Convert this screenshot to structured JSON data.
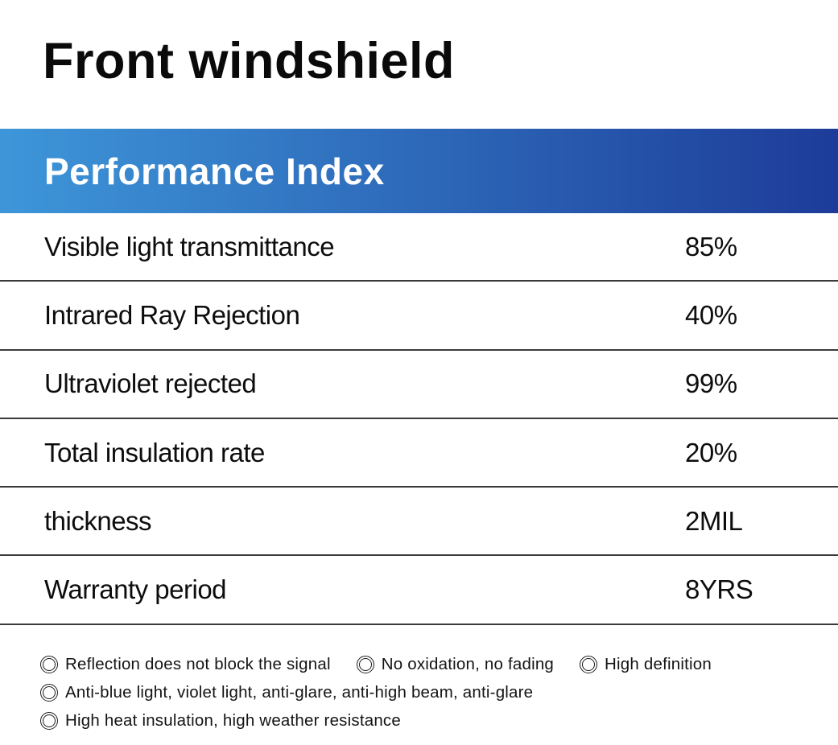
{
  "page": {
    "title": "Front windshield"
  },
  "banner": {
    "label": "Performance Index",
    "gradient_left": "#3e96d9",
    "gradient_right": "#1d3c99",
    "text_color": "#ffffff"
  },
  "spec_table": {
    "rows": [
      {
        "label": "Visible light transmittance",
        "value": "85%"
      },
      {
        "label": "Intrared Ray Rejection",
        "value": "40%"
      },
      {
        "label": "Ultraviolet rejected",
        "value": "99%"
      },
      {
        "label": "Total insulation rate",
        "value": "20%"
      },
      {
        "label": "thickness",
        "value": "2MIL"
      },
      {
        "label": "Warranty period",
        "value": "8YRS"
      }
    ]
  },
  "features": {
    "icon": "double-circle-icon",
    "lines": [
      [
        "Reflection does not block the signal",
        "No oxidation, no fading",
        "High definition"
      ],
      [
        "Anti-blue light, violet light, anti-glare, anti-high beam, anti-glare"
      ],
      [
        "High heat insulation, high weather resistance"
      ]
    ]
  }
}
